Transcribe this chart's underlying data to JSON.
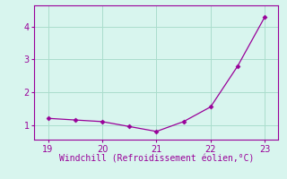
{
  "x": [
    19,
    19.5,
    20,
    20.5,
    21,
    21.5,
    22,
    22.5,
    23
  ],
  "y": [
    1.2,
    1.15,
    1.1,
    0.95,
    0.8,
    1.1,
    1.55,
    2.8,
    4.3
  ],
  "line_color": "#990099",
  "marker_color": "#990099",
  "bg_color": "#d8f5ee",
  "grid_color": "#aaddcc",
  "xlabel": "Windchill (Refroidissement éolien,°C)",
  "xlabel_color": "#990099",
  "tick_color": "#990099",
  "spine_color": "#990099",
  "xlim": [
    18.75,
    23.25
  ],
  "ylim": [
    0.55,
    4.65
  ],
  "xticks": [
    19,
    20,
    21,
    22,
    23
  ],
  "yticks": [
    1,
    2,
    3,
    4
  ],
  "xlabel_fontsize": 7,
  "tick_fontsize": 7
}
